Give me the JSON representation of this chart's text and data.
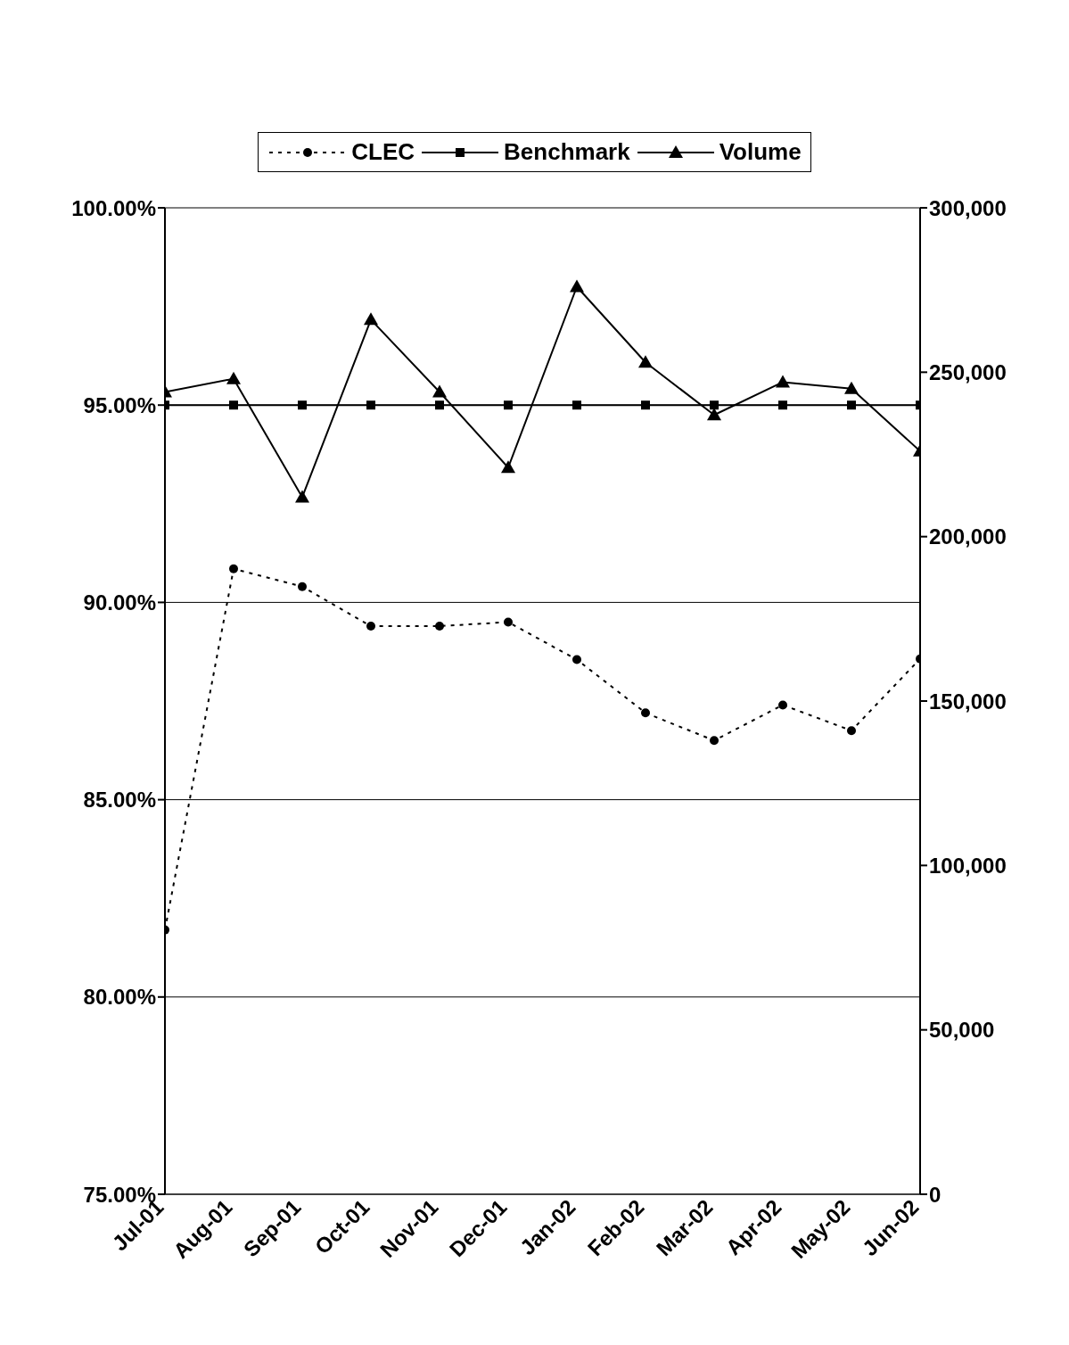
{
  "chart_data": {
    "type": "line",
    "categories": [
      "Jul-01",
      "Aug-01",
      "Sep-01",
      "Oct-01",
      "Nov-01",
      "Dec-01",
      "Jan-02",
      "Feb-02",
      "Mar-02",
      "Apr-02",
      "May-02",
      "Jun-02"
    ],
    "series": [
      {
        "name": "CLEC",
        "color": "#000000",
        "marker": "circle",
        "line_style": "dotted",
        "values": [
          81.7,
          90.85,
          90.4,
          89.4,
          89.4,
          89.5,
          88.55,
          87.2,
          86.5,
          87.4,
          86.75,
          88.57
        ]
      },
      {
        "name": "Benchmark",
        "color": "#000000",
        "marker": "square",
        "line_style": "solid",
        "values": [
          95,
          95,
          95,
          95,
          95,
          95,
          95,
          95,
          95,
          95,
          95,
          95
        ]
      },
      {
        "name": "Volume",
        "color": "#000000",
        "marker": "triangle",
        "line_style": "solid",
        "axis": "y2",
        "values": [
          244000,
          248000,
          212000,
          266000,
          244000,
          221000,
          276000,
          253000,
          237000,
          247000,
          245000,
          226000
        ]
      }
    ],
    "ylim": [
      75,
      100
    ],
    "yticks": [
      {
        "value": 75,
        "label": "75.00%"
      },
      {
        "value": 80,
        "label": "80.00%"
      },
      {
        "value": 85,
        "label": "85.00%"
      },
      {
        "value": 90,
        "label": "90.00%"
      },
      {
        "value": 95,
        "label": "95.00%"
      },
      {
        "value": 100,
        "label": "100.00%"
      }
    ],
    "y2lim": [
      0,
      300000
    ],
    "y2ticks": [
      0,
      {
        "value": 50000,
        "label": "50,000"
      },
      {
        "value": 100000,
        "label": "100,000"
      },
      {
        "value": 150000,
        "label": "150,000"
      },
      {
        "value": 200000,
        "label": "200,000"
      },
      {
        "value": 250000,
        "label": "250,000"
      },
      {
        "value": 300000,
        "label": "300,000"
      }
    ],
    "grid": "y",
    "legend": "top"
  }
}
